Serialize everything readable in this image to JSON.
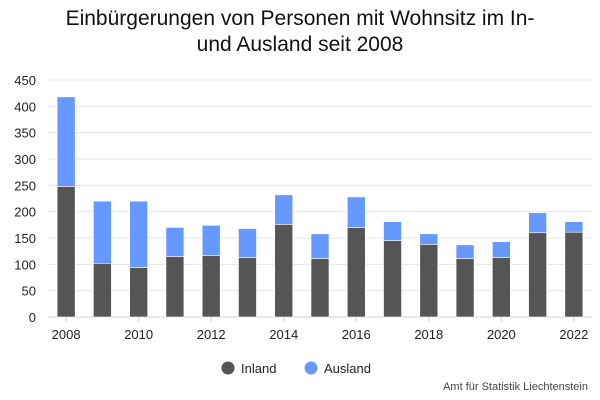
{
  "title_line1": "Einbürgerungen von Personen mit Wohnsitz im In-",
  "title_line2": "und Ausland seit 2008",
  "source": "Amt für Statistik Liechtenstein",
  "chart_data": {
    "type": "bar",
    "stacked": true,
    "categories": [
      "2008",
      "2009",
      "2010",
      "2011",
      "2012",
      "2013",
      "2014",
      "2015",
      "2016",
      "2017",
      "2018",
      "2019",
      "2020",
      "2021",
      "2022"
    ],
    "x_tick_labels": [
      "2008",
      "2010",
      "2012",
      "2014",
      "2016",
      "2018",
      "2020",
      "2022"
    ],
    "series": [
      {
        "name": "Inland",
        "color": "#555555",
        "values": [
          248,
          102,
          94,
          115,
          117,
          113,
          176,
          111,
          170,
          145,
          138,
          111,
          113,
          160,
          161
        ]
      },
      {
        "name": "Ausland",
        "color": "#6699ff",
        "values": [
          170,
          118,
          126,
          55,
          57,
          55,
          56,
          47,
          58,
          36,
          20,
          26,
          30,
          38,
          20
        ]
      }
    ],
    "ylim": [
      0,
      450
    ],
    "yticks": [
      0,
      50,
      100,
      150,
      200,
      250,
      300,
      350,
      400,
      450
    ],
    "grid": true,
    "legend_position": "bottom-center"
  }
}
